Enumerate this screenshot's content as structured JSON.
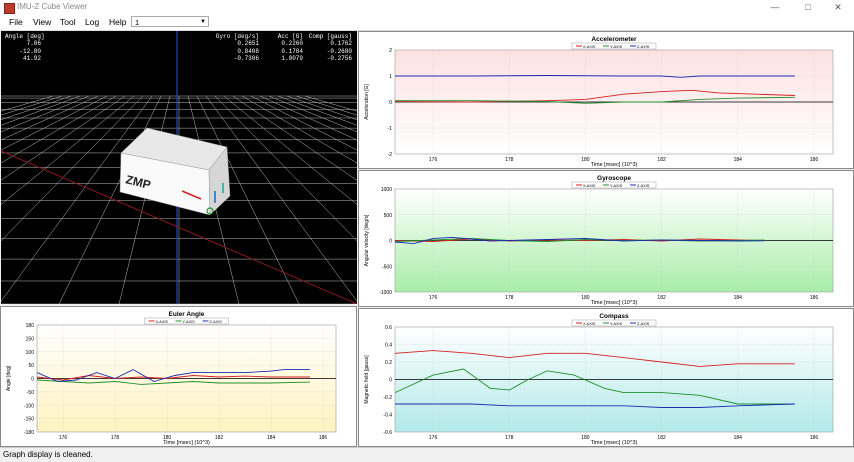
{
  "window": {
    "title": "IMU-Z Cube Viewer",
    "minimize": "—",
    "maximize": "□",
    "close": "✕"
  },
  "menu": {
    "items": [
      "File",
      "View",
      "Tool",
      "Log",
      "Help"
    ],
    "combo_value": "1"
  },
  "hud": {
    "angle_header": "Angle [deg]",
    "angle_values": "7.06\n-12.80\n41.92",
    "gyro_header": "Gyro [deg/s]",
    "gyro_values": "0.2651\n0.8408\n-0.7306",
    "acc_header": "Acc [G]",
    "acc_values": "0.2260\n0.1784\n1.0079",
    "comp_header": "Comp [gauss]",
    "comp_values": "0.1762\n-0.2680\n-0.2756",
    "cube_label": "ZMP"
  },
  "status": {
    "text": "Graph display is cleaned."
  },
  "colors": {
    "x": "#d42020",
    "y": "#20902a",
    "z": "#1a2bb4"
  },
  "chart_data": [
    {
      "id": "accelerometer",
      "type": "line",
      "title": "Accelerometer",
      "xlabel": "Time [msec] (10^3)",
      "ylabel": "Acceleration [G]",
      "ylim": [
        -2,
        2
      ],
      "yticks": [
        "2",
        "1",
        "0",
        "-1",
        "-2"
      ],
      "xticks": [
        "176",
        "178",
        "180",
        "182",
        "184",
        "186"
      ],
      "legend": [
        "X-AXIS",
        "Y-AXIS",
        "Z-AXIS"
      ],
      "background": [
        "#fde1e1",
        "#ffffff"
      ],
      "series": [
        {
          "name": "X-AXIS",
          "x": [
            175,
            177,
            179,
            180,
            181,
            182,
            182.8,
            183.5,
            184.5,
            185.5
          ],
          "y": [
            0.02,
            0.0,
            0.05,
            0.1,
            0.3,
            0.4,
            0.45,
            0.35,
            0.3,
            0.25
          ]
        },
        {
          "name": "Y-AXIS",
          "x": [
            175,
            177,
            179,
            180,
            181,
            182,
            183,
            184,
            185.5
          ],
          "y": [
            0.05,
            0.05,
            0.02,
            -0.05,
            0.0,
            0.0,
            0.1,
            0.15,
            0.18
          ]
        },
        {
          "name": "Z-AXIS",
          "x": [
            175,
            177,
            179,
            181,
            182,
            182.5,
            183,
            184,
            185.5
          ],
          "y": [
            1.0,
            1.0,
            1.02,
            1.0,
            1.0,
            0.95,
            1.0,
            1.0,
            1.0
          ]
        }
      ]
    },
    {
      "id": "gyroscope",
      "type": "line",
      "title": "Gyroscope",
      "xlabel": "Time [msec] (10^3)",
      "ylabel": "Angular velocity [deg/s]",
      "ylim": [
        -1000,
        1000
      ],
      "yticks": [
        "1000",
        "500",
        "0",
        "-500",
        "-1000"
      ],
      "xticks": [
        "176",
        "178",
        "180",
        "182",
        "184",
        "186"
      ],
      "legend": [
        "X-AXIS",
        "Y-AXIS",
        "Z-AXIS"
      ],
      "background": [
        "#ffffff",
        "#a8eda8"
      ],
      "series": [
        {
          "name": "X-AXIS",
          "x": [
            175,
            176,
            177,
            178,
            179,
            180,
            181,
            182,
            183,
            184,
            184.7
          ],
          "y": [
            0,
            -20,
            30,
            -10,
            10,
            0,
            20,
            -10,
            30,
            10,
            0
          ]
        },
        {
          "name": "Y-AXIS",
          "x": [
            175,
            176,
            177,
            178,
            179,
            180,
            181,
            182,
            183,
            184,
            184.7
          ],
          "y": [
            -20,
            10,
            40,
            0,
            -20,
            20,
            0,
            10,
            -10,
            0,
            10
          ]
        },
        {
          "name": "Z-AXIS",
          "x": [
            175,
            175.5,
            176,
            176.5,
            177,
            177.5,
            178,
            179,
            180,
            181,
            182,
            183,
            184,
            184.7
          ],
          "y": [
            -30,
            -60,
            40,
            60,
            30,
            -10,
            0,
            20,
            40,
            -10,
            10,
            0,
            -10,
            -5
          ]
        }
      ]
    },
    {
      "id": "euler",
      "type": "line",
      "title": "Euler Angle",
      "xlabel": "Time [msec] (10^3)",
      "ylabel": "Angle [deg]",
      "ylim": [
        -180,
        180
      ],
      "yticks": [
        "180",
        "150",
        "100",
        "50",
        "0",
        "-50",
        "-100",
        "-150",
        "-180"
      ],
      "xticks": [
        "176",
        "178",
        "180",
        "182",
        "184",
        "186"
      ],
      "legend": [
        "X-AXIS",
        "Y-AXIS",
        "Z-AXIS"
      ],
      "background": [
        "#ffffff",
        "#fff3c0"
      ],
      "series": [
        {
          "name": "X-AXIS",
          "x": [
            175,
            176,
            177,
            178,
            179,
            180,
            181,
            182,
            183,
            184,
            185.5
          ],
          "y": [
            5,
            -5,
            10,
            0,
            5,
            0,
            10,
            5,
            8,
            5,
            5
          ]
        },
        {
          "name": "Y-AXIS",
          "x": [
            175,
            176,
            177,
            178,
            179,
            180,
            181,
            182,
            183,
            184,
            185.5
          ],
          "y": [
            -5,
            -10,
            -15,
            -10,
            -20,
            -15,
            -10,
            -15,
            -15,
            -15,
            -12
          ]
        },
        {
          "name": "Z-AXIS",
          "x": [
            175,
            175.8,
            176.5,
            177.3,
            178,
            178.7,
            179.5,
            180.3,
            181,
            182,
            183,
            184,
            184.5,
            185.5
          ],
          "y": [
            20,
            -10,
            -5,
            20,
            0,
            30,
            -10,
            10,
            20,
            20,
            20,
            25,
            30,
            30
          ]
        }
      ]
    },
    {
      "id": "compass",
      "type": "line",
      "title": "Compass",
      "xlabel": "Time [msec] (10^3)",
      "ylabel": "Magnetic field [gauss]",
      "ylim": [
        -0.6,
        0.6
      ],
      "yticks": [
        "0.6",
        "0.4",
        "0.2",
        "0",
        "-0.2",
        "-0.4",
        "-0.6"
      ],
      "xticks": [
        "176",
        "178",
        "180",
        "182",
        "184",
        "186"
      ],
      "legend": [
        "X-AXIS",
        "Y-AXIS",
        "Z-AXIS"
      ],
      "background": [
        "#ffffff",
        "#b2eaea"
      ],
      "series": [
        {
          "name": "X-AXIS",
          "x": [
            175,
            176,
            177,
            178,
            179,
            180,
            181,
            182,
            183,
            184,
            185.5
          ],
          "y": [
            0.3,
            0.33,
            0.3,
            0.25,
            0.3,
            0.3,
            0.25,
            0.2,
            0.15,
            0.18,
            0.18
          ]
        },
        {
          "name": "Y-AXIS",
          "x": [
            175,
            176,
            176.8,
            177.5,
            178,
            178.5,
            179,
            179.7,
            180.5,
            181,
            182,
            183,
            184,
            185.5
          ],
          "y": [
            -0.15,
            0.05,
            0.12,
            -0.1,
            -0.12,
            0.0,
            0.1,
            0.05,
            -0.1,
            -0.15,
            -0.15,
            -0.18,
            -0.28,
            -0.28
          ]
        },
        {
          "name": "Z-AXIS",
          "x": [
            175,
            176,
            177,
            178,
            179,
            180,
            181,
            182,
            183,
            184,
            185.5
          ],
          "y": [
            -0.28,
            -0.28,
            -0.28,
            -0.3,
            -0.3,
            -0.3,
            -0.3,
            -0.32,
            -0.32,
            -0.3,
            -0.28
          ]
        }
      ]
    }
  ]
}
